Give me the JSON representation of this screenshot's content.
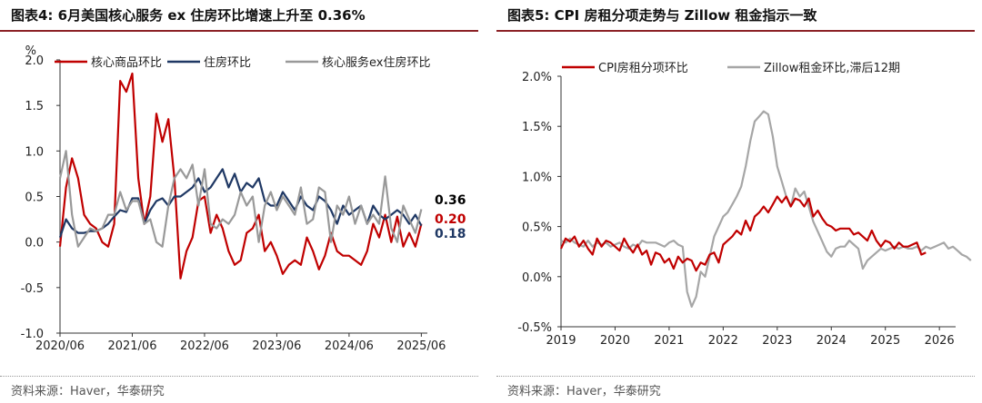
{
  "panels": {
    "left": {
      "title": "图表4:  6月美国核心服务 ex 住房环比增速上升至 0.36%",
      "source": "资料来源：Haver，华泰研究"
    },
    "right": {
      "title": "图表5:  CPI 房租分项走势与 Zillow 租金指示一致",
      "source": "资料来源：Haver，华泰研究"
    }
  },
  "chart_data": [
    {
      "type": "line",
      "unit_label": "%",
      "ylim": [
        -1.0,
        2.0
      ],
      "yticks": [
        -1.0,
        -0.5,
        0.0,
        0.5,
        1.0,
        1.5,
        2.0
      ],
      "ytick_labels": [
        "-1.0",
        "-0.5",
        "0.0",
        "0.5",
        "1.0",
        "1.5",
        "2.0"
      ],
      "xlim": [
        0,
        61
      ],
      "xticks": [
        0,
        12,
        24,
        36,
        48,
        60
      ],
      "xtick_labels": [
        "2020/06",
        "2021/06",
        "2022/06",
        "2023/06",
        "2024/06",
        "2025/06"
      ],
      "legend_position": "top",
      "series": [
        {
          "name": "核心商品环比",
          "color": "#c00000",
          "values": [
            -0.05,
            0.6,
            0.92,
            0.7,
            0.3,
            0.2,
            0.15,
            0.0,
            -0.05,
            0.2,
            1.77,
            1.65,
            1.85,
            0.7,
            0.2,
            0.5,
            1.41,
            1.1,
            1.35,
            0.7,
            -0.4,
            -0.1,
            0.05,
            0.45,
            0.5,
            0.1,
            0.3,
            0.15,
            -0.1,
            -0.25,
            -0.2,
            0.1,
            0.15,
            0.3,
            -0.1,
            0.0,
            -0.15,
            -0.35,
            -0.25,
            -0.2,
            -0.25,
            0.05,
            -0.1,
            -0.3,
            -0.15,
            0.1,
            -0.1,
            -0.15,
            -0.15,
            -0.2,
            -0.25,
            -0.1,
            0.2,
            0.05,
            0.3,
            0.0,
            0.28,
            -0.05,
            0.1,
            -0.05,
            0.2
          ]
        },
        {
          "name": "住房环比",
          "color": "#1f3864",
          "values": [
            0.05,
            0.25,
            0.15,
            0.1,
            0.1,
            0.12,
            0.12,
            0.15,
            0.2,
            0.28,
            0.35,
            0.33,
            0.48,
            0.48,
            0.2,
            0.35,
            0.45,
            0.48,
            0.4,
            0.5,
            0.5,
            0.55,
            0.6,
            0.7,
            0.55,
            0.6,
            0.7,
            0.8,
            0.6,
            0.75,
            0.55,
            0.65,
            0.6,
            0.7,
            0.45,
            0.4,
            0.4,
            0.55,
            0.45,
            0.35,
            0.5,
            0.4,
            0.35,
            0.5,
            0.45,
            0.35,
            0.2,
            0.4,
            0.3,
            0.35,
            0.4,
            0.2,
            0.4,
            0.3,
            0.25,
            0.3,
            0.35,
            0.3,
            0.2,
            0.3,
            0.18
          ]
        },
        {
          "name": "核心服务ex住房环比",
          "color": "#999999",
          "values": [
            0.7,
            1.0,
            0.3,
            -0.05,
            0.05,
            0.15,
            0.12,
            0.15,
            0.3,
            0.3,
            0.55,
            0.35,
            0.45,
            0.45,
            0.2,
            0.25,
            0.0,
            -0.05,
            0.4,
            0.7,
            0.8,
            0.7,
            0.85,
            0.4,
            0.8,
            0.2,
            0.15,
            0.25,
            0.2,
            0.3,
            0.55,
            0.4,
            0.5,
            0.0,
            0.4,
            0.55,
            0.35,
            0.5,
            0.4,
            0.3,
            0.6,
            0.2,
            0.25,
            0.6,
            0.55,
            0.0,
            0.4,
            0.3,
            0.5,
            0.2,
            0.4,
            0.2,
            0.3,
            0.2,
            0.72,
            0.15,
            0.0,
            0.4,
            0.25,
            0.1,
            0.36
          ]
        }
      ],
      "end_labels": [
        {
          "text": "0.36",
          "color": "#000000",
          "value": 0.36
        },
        {
          "text": "0.20",
          "color": "#c00000",
          "value": 0.2
        },
        {
          "text": "0.18",
          "color": "#1f3864",
          "value": 0.18
        }
      ]
    },
    {
      "type": "line",
      "ylim": [
        -0.005,
        0.02
      ],
      "yticks": [
        -0.005,
        0.0,
        0.005,
        0.01,
        0.015,
        0.02
      ],
      "ytick_labels": [
        "-0.5%",
        "0.0%",
        "0.5%",
        "1.0%",
        "1.5%",
        "2.0%"
      ],
      "xlim": [
        2019.0,
        2026.3
      ],
      "xticks": [
        2019,
        2020,
        2021,
        2022,
        2023,
        2024,
        2025,
        2026
      ],
      "xtick_labels": [
        "2019",
        "2020",
        "2021",
        "2022",
        "2023",
        "2024",
        "2025",
        "2026"
      ],
      "legend_position": "top-left",
      "series": [
        {
          "name": "CPI房租分项环比",
          "color": "#c00000",
          "x_start": 2019.0,
          "x_step": 0.0833333,
          "values": [
            0.0028,
            0.0038,
            0.0035,
            0.004,
            0.003,
            0.0036,
            0.0028,
            0.0022,
            0.0038,
            0.003,
            0.0036,
            0.0034,
            0.003,
            0.0026,
            0.0038,
            0.003,
            0.0024,
            0.0032,
            0.0022,
            0.0026,
            0.0012,
            0.0024,
            0.0022,
            0.0014,
            0.0018,
            0.0008,
            0.002,
            0.0014,
            0.0018,
            0.0016,
            0.0006,
            0.0014,
            0.0012,
            0.0022,
            0.0024,
            0.0014,
            0.0032,
            0.0036,
            0.004,
            0.0046,
            0.0042,
            0.0056,
            0.0046,
            0.006,
            0.0064,
            0.007,
            0.0064,
            0.0072,
            0.008,
            0.0074,
            0.008,
            0.007,
            0.0078,
            0.0076,
            0.007,
            0.0078,
            0.006,
            0.0066,
            0.0058,
            0.0052,
            0.005,
            0.0046,
            0.0048,
            0.0048,
            0.0048,
            0.0042,
            0.0044,
            0.004,
            0.0036,
            0.0046,
            0.0036,
            0.003,
            0.0036,
            0.0034,
            0.0028,
            0.0034,
            0.003,
            0.003,
            0.0032,
            0.0034,
            0.0022,
            0.0024
          ]
        },
        {
          "name": "Zillow租金环比,滞后12期",
          "color": "#a6a6a6",
          "x_start": 2019.0,
          "x_step": 0.0833333,
          "values": [
            0.0036,
            0.0034,
            0.0038,
            0.0034,
            0.0032,
            0.003,
            0.0036,
            0.003,
            0.0034,
            0.0032,
            0.0034,
            0.003,
            0.0032,
            0.0034,
            0.003,
            0.0028,
            0.0032,
            0.003,
            0.0036,
            0.0034,
            0.0034,
            0.0034,
            0.0032,
            0.003,
            0.0034,
            0.0036,
            0.0032,
            0.003,
            -0.0015,
            -0.003,
            -0.002,
            0.0005,
            0.0,
            0.002,
            0.004,
            0.005,
            0.006,
            0.0064,
            0.0072,
            0.008,
            0.009,
            0.011,
            0.0135,
            0.0155,
            0.016,
            0.0165,
            0.0162,
            0.014,
            0.011,
            0.0095,
            0.008,
            0.007,
            0.0088,
            0.008,
            0.0085,
            0.007,
            0.0055,
            0.0045,
            0.0035,
            0.0025,
            0.002,
            0.0028,
            0.003,
            0.003,
            0.0036,
            0.0032,
            0.0028,
            0.0008,
            0.0016,
            0.002,
            0.0024,
            0.0028,
            0.0026,
            0.0028,
            0.003,
            0.0028,
            0.003,
            0.0028,
            0.0028,
            0.003,
            0.0026,
            0.003,
            0.0028,
            0.003,
            0.0032,
            0.0034,
            0.0028,
            0.003,
            0.0026,
            0.0022,
            0.002,
            0.0016
          ]
        }
      ]
    }
  ]
}
